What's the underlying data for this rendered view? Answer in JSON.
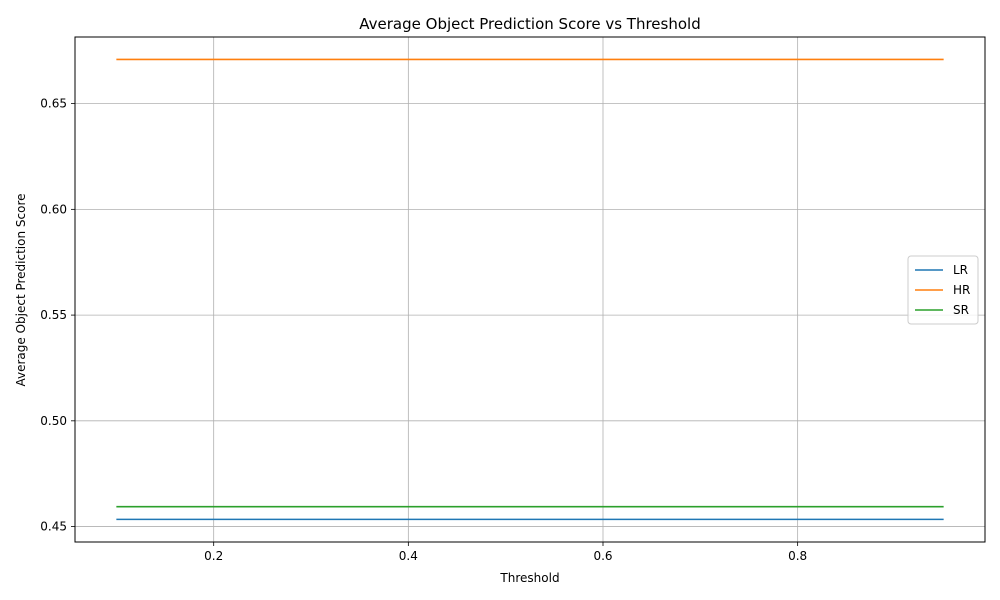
{
  "chart_data": {
    "type": "line",
    "title": "Average Object Prediction Score vs Threshold",
    "xlabel": "Threshold",
    "ylabel": "Average Object Prediction Score",
    "xlim": [
      0.0575,
      0.9925
    ],
    "ylim": [
      0.4427,
      0.6815
    ],
    "xticks": [
      0.2,
      0.4,
      0.6,
      0.8
    ],
    "yticks": [
      0.45,
      0.5,
      0.55,
      0.6,
      0.65
    ],
    "xtick_labels": [
      "0.2",
      "0.4",
      "0.6",
      "0.8"
    ],
    "ytick_labels": [
      "0.45",
      "0.50",
      "0.55",
      "0.60",
      "0.65"
    ],
    "grid": true,
    "legend_position": "center-right",
    "x": [
      0.1,
      0.15,
      0.2,
      0.25,
      0.3,
      0.35,
      0.4,
      0.45,
      0.5,
      0.55,
      0.6,
      0.65,
      0.7,
      0.75,
      0.8,
      0.85,
      0.9,
      0.95
    ],
    "series": [
      {
        "name": "LR",
        "color": "#1f77b4",
        "values": [
          0.4534,
          0.4534,
          0.4534,
          0.4534,
          0.4534,
          0.4534,
          0.4534,
          0.4534,
          0.4534,
          0.4534,
          0.4534,
          0.4534,
          0.4534,
          0.4534,
          0.4534,
          0.4534,
          0.4534,
          0.4534
        ]
      },
      {
        "name": "HR",
        "color": "#ff7f0e",
        "values": [
          0.6709,
          0.6709,
          0.6709,
          0.6709,
          0.6709,
          0.6709,
          0.6709,
          0.6709,
          0.6709,
          0.6709,
          0.6709,
          0.6709,
          0.6709,
          0.6709,
          0.6709,
          0.6709,
          0.6709,
          0.6709
        ]
      },
      {
        "name": "SR",
        "color": "#2ca02c",
        "values": [
          0.4594,
          0.4594,
          0.4594,
          0.4594,
          0.4594,
          0.4594,
          0.4594,
          0.4594,
          0.4594,
          0.4594,
          0.4594,
          0.4594,
          0.4594,
          0.4594,
          0.4594,
          0.4594,
          0.4594,
          0.4594
        ]
      }
    ]
  }
}
